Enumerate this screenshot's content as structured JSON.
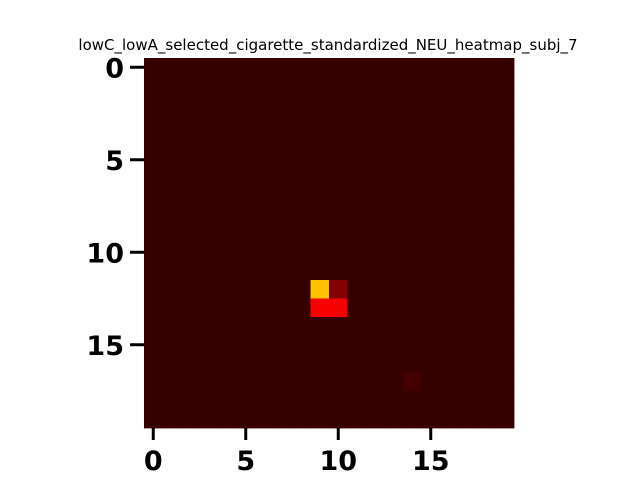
{
  "chart_data": {
    "type": "heatmap",
    "title": "lowC_lowA_selected_cigarette_standardized_NEU_heatmap_subj_7",
    "colormap": "hot",
    "rows": 20,
    "cols": 20,
    "value_range": [
      0,
      1
    ],
    "background_value": 0.04,
    "cells": [
      {
        "row": 12,
        "col": 9,
        "value": 0.65
      },
      {
        "row": 12,
        "col": 10,
        "value": 0.16
      },
      {
        "row": 13,
        "col": 9,
        "value": 0.34
      },
      {
        "row": 13,
        "col": 10,
        "value": 0.34
      },
      {
        "row": 17,
        "col": 14,
        "value": 0.06
      }
    ],
    "x_ticks": [
      0,
      5,
      10,
      15
    ],
    "y_ticks": [
      0,
      5,
      10,
      15
    ],
    "xlabel": "",
    "ylabel": "",
    "grid": false,
    "legend": "none"
  }
}
